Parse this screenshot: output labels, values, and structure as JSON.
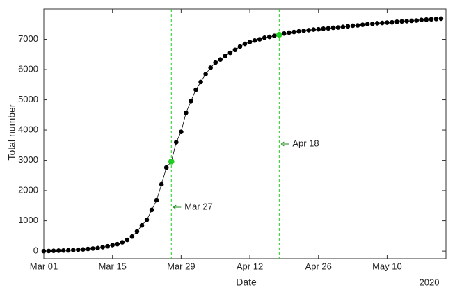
{
  "chart_data": {
    "type": "line",
    "x_label": "Date",
    "y_label": "Total number",
    "x_year_label": "2020",
    "x": [
      "2020-03-01",
      "2020-03-02",
      "2020-03-03",
      "2020-03-04",
      "2020-03-05",
      "2020-03-06",
      "2020-03-07",
      "2020-03-08",
      "2020-03-09",
      "2020-03-10",
      "2020-03-11",
      "2020-03-12",
      "2020-03-13",
      "2020-03-14",
      "2020-03-15",
      "2020-03-16",
      "2020-03-17",
      "2020-03-18",
      "2020-03-19",
      "2020-03-20",
      "2020-03-21",
      "2020-03-22",
      "2020-03-23",
      "2020-03-24",
      "2020-03-25",
      "2020-03-26",
      "2020-03-27",
      "2020-03-28",
      "2020-03-29",
      "2020-03-30",
      "2020-03-31",
      "2020-04-01",
      "2020-04-02",
      "2020-04-03",
      "2020-04-04",
      "2020-04-05",
      "2020-04-06",
      "2020-04-07",
      "2020-04-08",
      "2020-04-09",
      "2020-04-10",
      "2020-04-11",
      "2020-04-12",
      "2020-04-13",
      "2020-04-14",
      "2020-04-15",
      "2020-04-16",
      "2020-04-17",
      "2020-04-18",
      "2020-04-19",
      "2020-04-20",
      "2020-04-21",
      "2020-04-22",
      "2020-04-23",
      "2020-04-24",
      "2020-04-25",
      "2020-04-26",
      "2020-04-27",
      "2020-04-28",
      "2020-04-29",
      "2020-04-30",
      "2020-05-01",
      "2020-05-02",
      "2020-05-03",
      "2020-05-04",
      "2020-05-05",
      "2020-05-06",
      "2020-05-07",
      "2020-05-08",
      "2020-05-09",
      "2020-05-10",
      "2020-05-11",
      "2020-05-12",
      "2020-05-13",
      "2020-05-14",
      "2020-05-15",
      "2020-05-16",
      "2020-05-17",
      "2020-05-18",
      "2020-05-19",
      "2020-05-20",
      "2020-05-21"
    ],
    "series": [
      {
        "color": "#000000",
        "values": [
          0,
          5,
          10,
          15,
          20,
          25,
          35,
          45,
          55,
          70,
          85,
          100,
          130,
          160,
          200,
          230,
          290,
          370,
          480,
          650,
          850,
          1030,
          1360,
          1680,
          2210,
          2760,
          2960,
          3600,
          3940,
          4570,
          4960,
          5330,
          5590,
          5850,
          6060,
          6230,
          6330,
          6450,
          6550,
          6650,
          6760,
          6850,
          6910,
          6960,
          7000,
          7050,
          7080,
          7110,
          7150,
          7190,
          7220,
          7240,
          7260,
          7280,
          7300,
          7320,
          7330,
          7350,
          7360,
          7380,
          7390,
          7410,
          7430,
          7450,
          7460,
          7480,
          7500,
          7510,
          7530,
          7540,
          7550,
          7560,
          7580,
          7590,
          7600,
          7610,
          7620,
          7640,
          7650,
          7660,
          7670,
          7680
        ]
      }
    ],
    "highlights": [
      {
        "x": "2020-03-27",
        "value": 2960,
        "label": "Mar 27"
      },
      {
        "x": "2020-04-18",
        "value": 7150,
        "label": "Apr 18"
      }
    ],
    "highlight_color": "#22cc22",
    "annotation_color": "#1a8a1a",
    "xlim": [
      "2020-03-01",
      "2020-05-22"
    ],
    "xticks": [
      {
        "value": "2020-03-01",
        "label": "Mar 01"
      },
      {
        "value": "2020-03-15",
        "label": "Mar 15"
      },
      {
        "value": "2020-03-29",
        "label": "Mar 29"
      },
      {
        "value": "2020-04-12",
        "label": "Apr 12"
      },
      {
        "value": "2020-04-26",
        "label": "Apr 26"
      },
      {
        "value": "2020-05-10",
        "label": "May 10"
      }
    ],
    "ylim": [
      -250,
      8000
    ],
    "yticks": [
      0,
      1000,
      2000,
      3000,
      4000,
      5000,
      6000,
      7000
    ]
  }
}
